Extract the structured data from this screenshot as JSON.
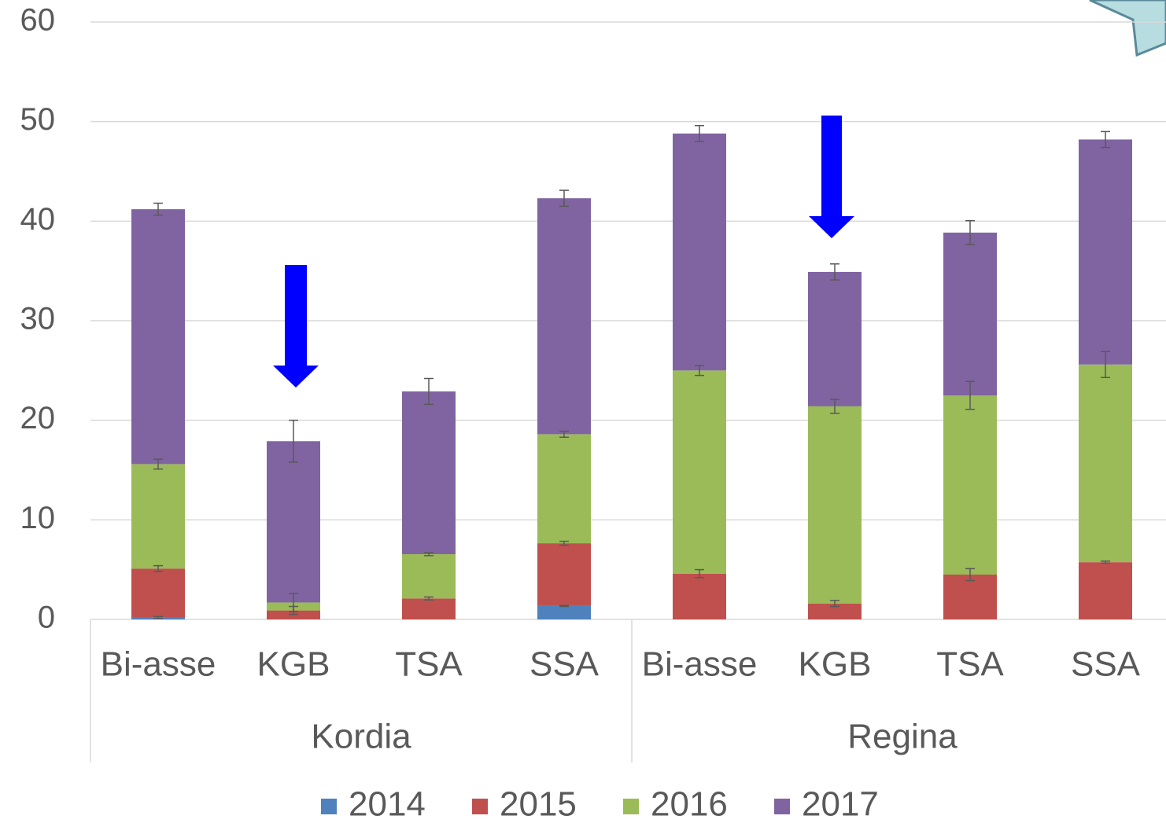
{
  "chart_data": {
    "type": "bar",
    "stacked": true,
    "groups": [
      {
        "name": "Kordia",
        "categories": [
          "Bi-asse",
          "KGB",
          "TSA",
          "SSA"
        ]
      },
      {
        "name": "Regina",
        "categories": [
          "Bi-asse",
          "KGB",
          "TSA",
          "SSA"
        ]
      }
    ],
    "series": [
      {
        "name": "2014",
        "color": "#4f81bd",
        "values": [
          0.2,
          0,
          0,
          1.35,
          0,
          0,
          0,
          0
        ],
        "errors": [
          0.1,
          0,
          0,
          0.05,
          0,
          0,
          0,
          0
        ]
      },
      {
        "name": "2015",
        "color": "#c0504d",
        "values": [
          4.9,
          0.9,
          2.1,
          6.3,
          4.6,
          1.6,
          4.5,
          5.75
        ],
        "errors": [
          0.3,
          0.4,
          0.15,
          0.2,
          0.4,
          0.3,
          0.6,
          0.1
        ]
      },
      {
        "name": "2016",
        "color": "#9bbb59",
        "values": [
          10.5,
          0.8,
          4.45,
          10.95,
          20.4,
          19.8,
          18.0,
          19.85
        ],
        "errors": [
          0.5,
          0.9,
          0.15,
          0.3,
          0.5,
          0.7,
          1.4,
          1.3
        ]
      },
      {
        "name": "2017",
        "color": "#8064a2",
        "values": [
          25.6,
          16.2,
          16.35,
          23.7,
          23.8,
          13.5,
          16.35,
          22.6
        ],
        "errors": [
          0.6,
          2.1,
          1.3,
          0.8,
          0.8,
          0.8,
          1.2,
          0.8
        ]
      }
    ],
    "ylim": [
      0,
      60
    ],
    "yticks": [
      0,
      10,
      20,
      30,
      40,
      50,
      60
    ],
    "grid": true,
    "legend": "bottom"
  }
}
